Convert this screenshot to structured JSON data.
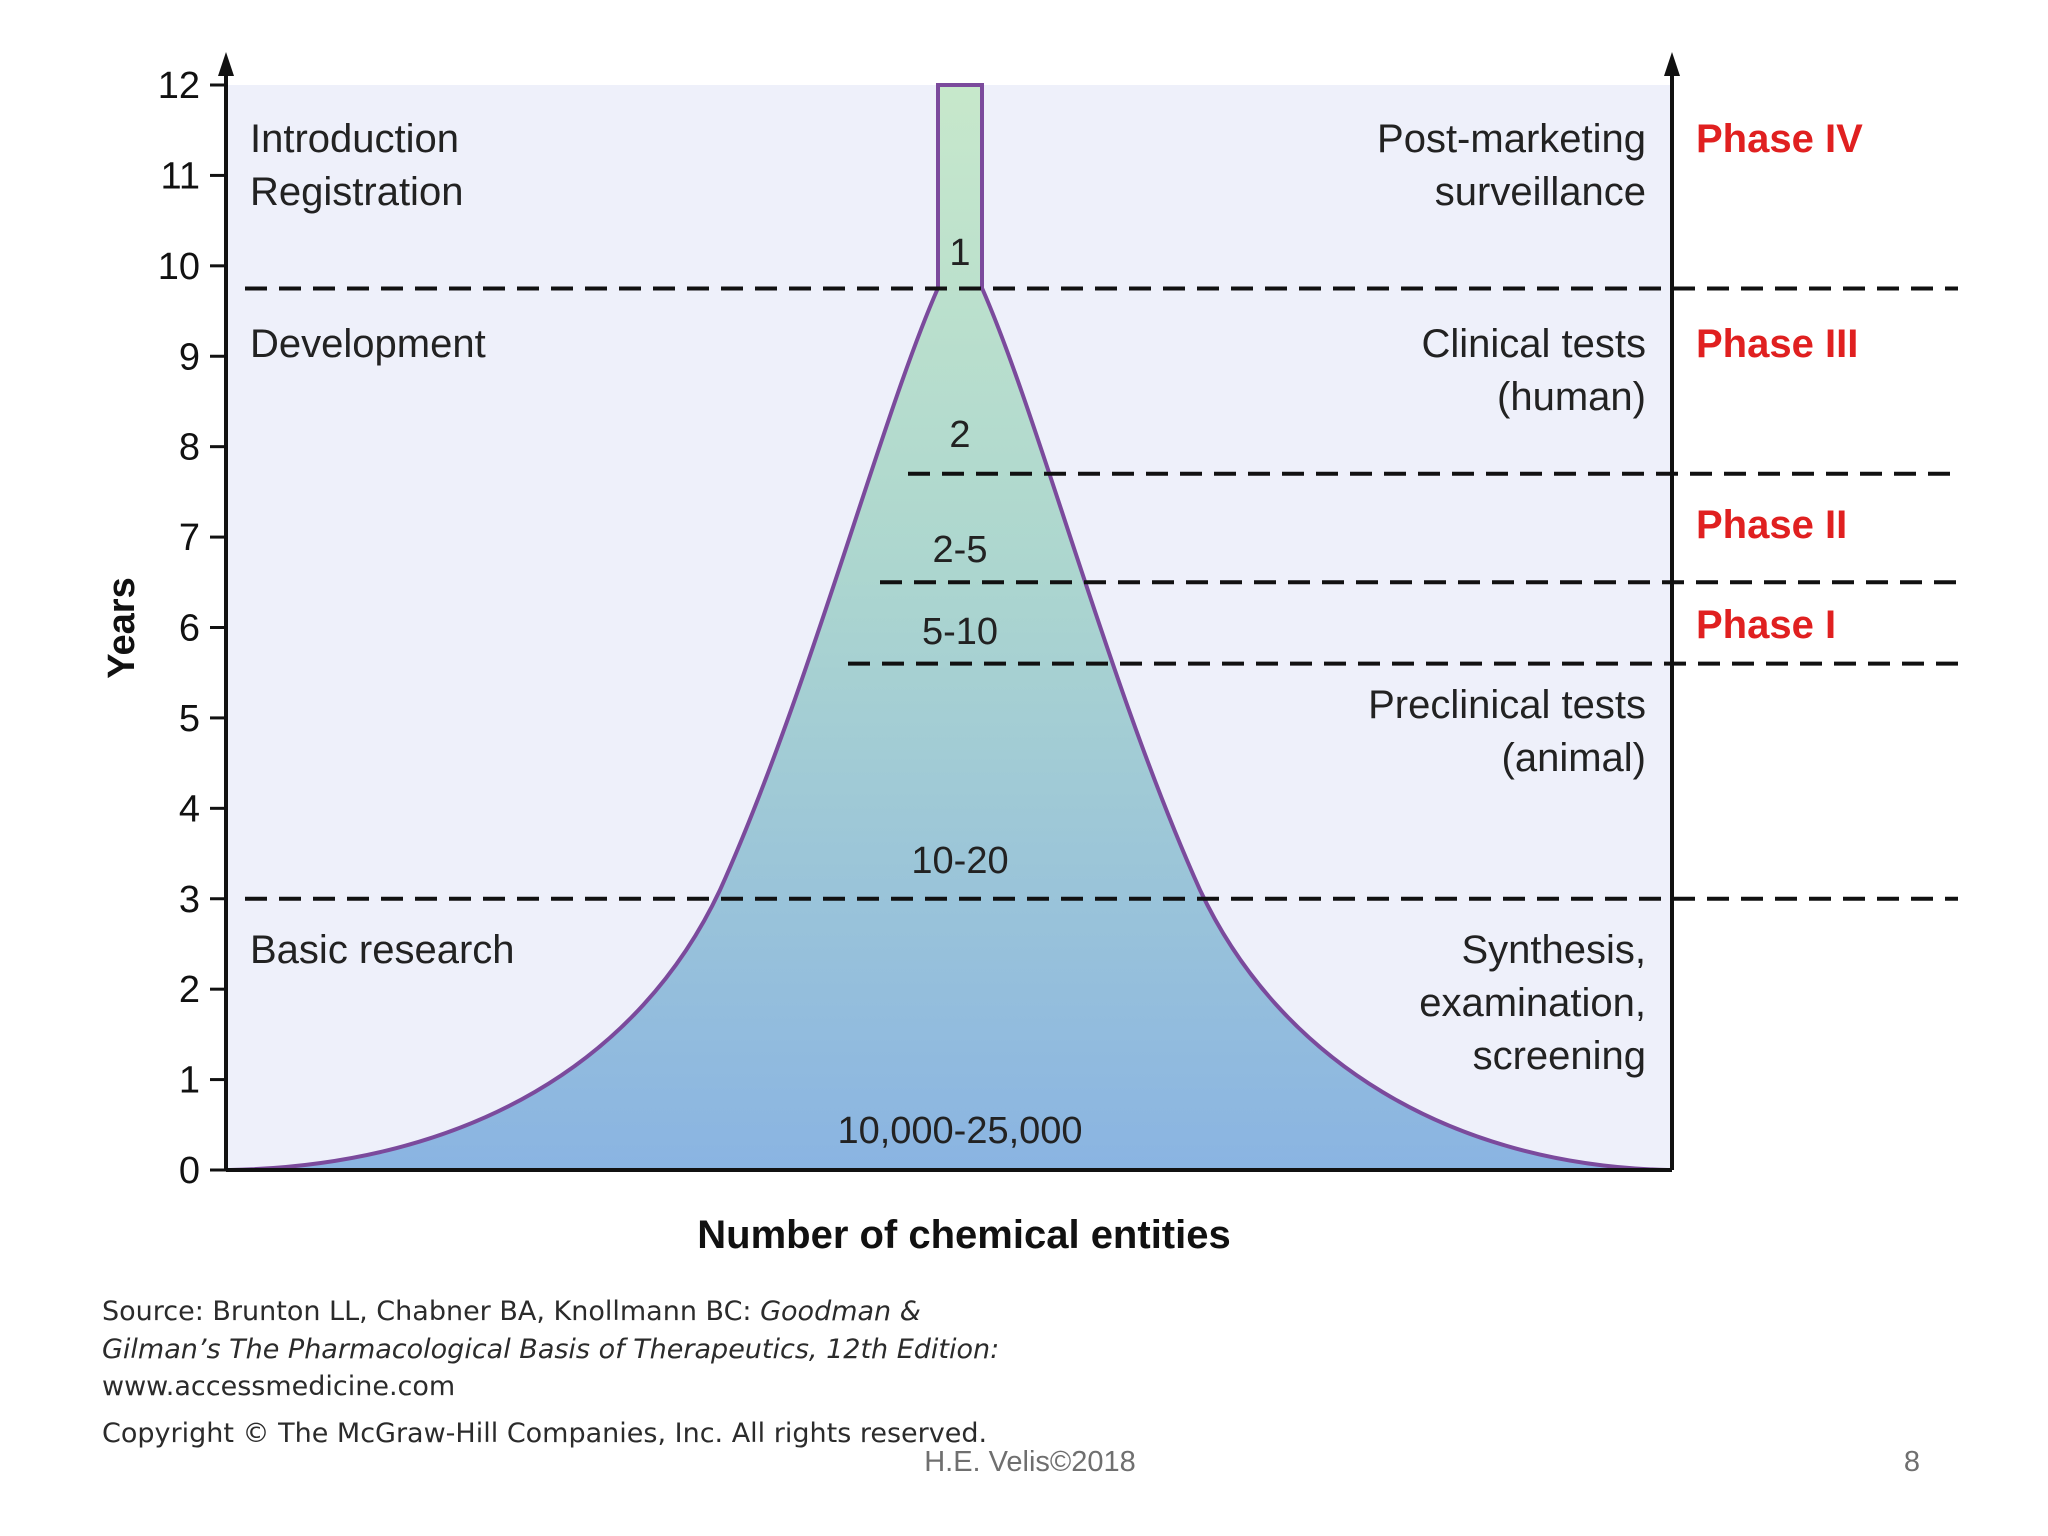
{
  "diagram": {
    "y_axis": {
      "label": "Years",
      "ticks": [
        "0",
        "1",
        "2",
        "3",
        "4",
        "5",
        "6",
        "7",
        "8",
        "9",
        "10",
        "11",
        "12"
      ]
    },
    "x_axis_label": "Number of chemical entities",
    "left_labels": {
      "introduction_line1": "Introduction",
      "introduction_line2": "Registration",
      "development": "Development",
      "basic_research": "Basic research"
    },
    "right_labels": {
      "post_marketing_line1": "Post-marketing",
      "post_marketing_line2": "surveillance",
      "clinical_line1": "Clinical tests",
      "clinical_line2": "(human)",
      "preclinical_line1": "Preclinical tests",
      "preclinical_line2": "(animal)",
      "synthesis_line1": "Synthesis,",
      "synthesis_line2": "examination,",
      "synthesis_line3": "screening"
    },
    "phases": {
      "phase_iv": "Phase IV",
      "phase_iii": "Phase III",
      "phase_ii": "Phase II",
      "phase_i": "Phase I"
    },
    "funnel_counts": {
      "c1": "1",
      "c2": "2",
      "c3": "2-5",
      "c4": "5-10",
      "c5": "10-20",
      "c6": "10,000-25,000"
    },
    "stage_boundaries_years": [
      9.75,
      7.7,
      6.5,
      5.6,
      3.0
    ],
    "colors": {
      "background": "#eef0fa",
      "funnel_top": "#c7e8cb",
      "funnel_bottom": "#8ab4e2",
      "funnel_outline": "#7b4a9c",
      "phase_text": "#e02020"
    }
  },
  "source": {
    "line1_prefix": "Source: Brunton LL, Chabner BA, Knollmann BC: ",
    "line1_italic": "Goodman &",
    "line2_italic": "Gilman’s The Pharmacological Basis of Therapeutics, 12th Edition:",
    "line3": "www.accessmedicine.com",
    "copyright": "Copyright © The McGraw-Hill Companies, Inc. All rights reserved."
  },
  "footer": {
    "author": "H.E. Velis©2018",
    "page_number": "8"
  }
}
